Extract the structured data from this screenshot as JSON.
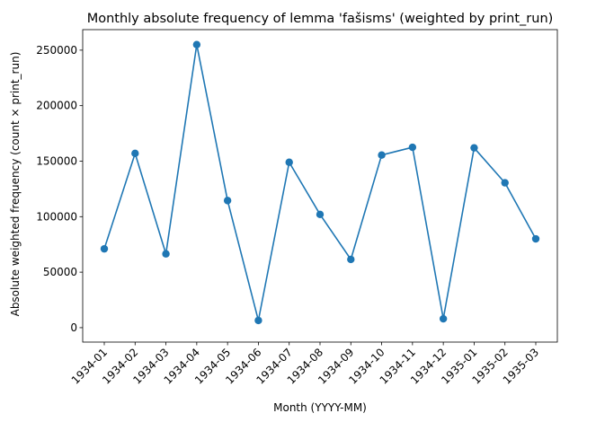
{
  "chart_data": {
    "type": "line",
    "title": "Monthly absolute frequency of lemma 'fašisms' (weighted by print_run)",
    "xlabel": "Month (YYYY-MM)",
    "ylabel": "Absolute weighted frequency (count × print_run)",
    "categories": [
      "1934-01",
      "1934-02",
      "1934-03",
      "1934-04",
      "1934-05",
      "1934-06",
      "1934-07",
      "1934-08",
      "1934-09",
      "1934-10",
      "1934-11",
      "1934-12",
      "1935-01",
      "1935-02",
      "1935-03"
    ],
    "series": [
      {
        "values": [
          71000,
          157000,
          66500,
          255000,
          114500,
          6500,
          149000,
          102000,
          61500,
          155500,
          162500,
          8000,
          162000,
          130500,
          80000
        ],
        "color": "#1f77b4",
        "marker": "circle"
      }
    ],
    "yticks": [
      0,
      50000,
      100000,
      150000,
      200000,
      250000
    ],
    "ytick_labels": [
      "0",
      "50000",
      "100000",
      "150000",
      "200000",
      "250000"
    ],
    "ylim": [
      -13000,
      268500
    ],
    "grid": false,
    "legend": "none"
  }
}
